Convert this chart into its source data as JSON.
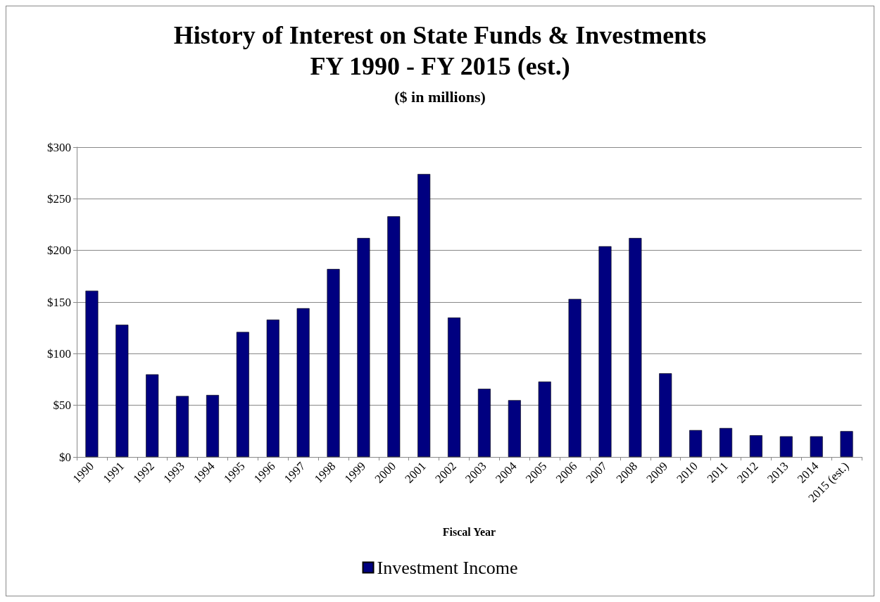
{
  "chart_data": {
    "type": "bar",
    "title": "History of Interest on State Funds & Investments\nFY 1990 - FY 2015 (est.)",
    "subtitle": "($ in millions)",
    "xlabel": "Fiscal Year",
    "categories": [
      "1990",
      "1991",
      "1992",
      "1993",
      "1994",
      "1995",
      "1996",
      "1997",
      "1998",
      "1999",
      "2000",
      "2001",
      "2002",
      "2003",
      "2004",
      "2005",
      "2006",
      "2007",
      "2008",
      "2009",
      "2010",
      "2011",
      "2012",
      "2013",
      "2014",
      "2015 (est.)"
    ],
    "series": [
      {
        "name": "Investment Income",
        "color": "#000080",
        "values": [
          161,
          128,
          80,
          59,
          60,
          121,
          133,
          144,
          182,
          212,
          233,
          274,
          135,
          66,
          55,
          73,
          153,
          204,
          212,
          81,
          26,
          28,
          21,
          20,
          20,
          25
        ]
      }
    ],
    "ylim": [
      0,
      300
    ],
    "yticks": [
      {
        "value": 0,
        "label": "$0"
      },
      {
        "value": 50,
        "label": "$50"
      },
      {
        "value": 100,
        "label": "$100"
      },
      {
        "value": 150,
        "label": "$150"
      },
      {
        "value": 200,
        "label": "$200"
      },
      {
        "value": 250,
        "label": "$250"
      },
      {
        "value": 300,
        "label": "$300"
      }
    ],
    "grid": "y",
    "legend": "bottom"
  }
}
